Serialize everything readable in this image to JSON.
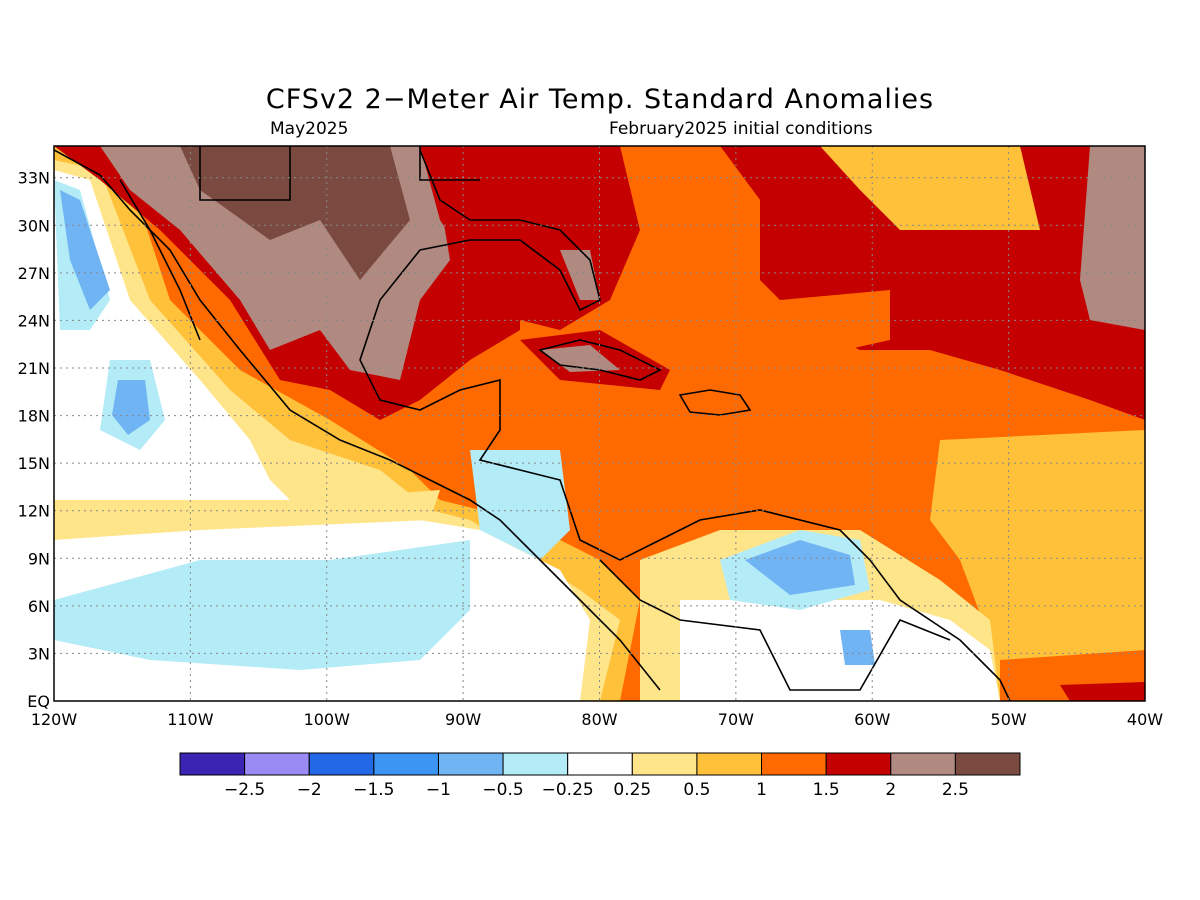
{
  "title": "CFSv2 2−Meter Air Temp. Standard Anomalies",
  "valid_month": "May2025",
  "initial_conditions": "February2025 initial conditions",
  "map": {
    "lon_labels": [
      "120W",
      "110W",
      "100W",
      "90W",
      "80W",
      "70W",
      "60W",
      "50W",
      "40W"
    ],
    "lat_labels": [
      "33N",
      "30N",
      "27N",
      "24N",
      "21N",
      "18N",
      "15N",
      "12N",
      "9N",
      "6N",
      "3N",
      "EQ"
    ],
    "lon_range": [
      -120,
      -40
    ],
    "lat_range": [
      0,
      35
    ],
    "gridlines": true
  },
  "legend": {
    "colors": [
      "#3b24b3",
      "#9a8af4",
      "#2368e6",
      "#3c95f2",
      "#70b4f4",
      "#b3ebf7",
      "#ffffff",
      "#ffe58a",
      "#ffc03a",
      "#ff6a00",
      "#c40000",
      "#b08a80",
      "#7a4a40"
    ],
    "labels": [
      "−2.5",
      "−2",
      "−1.5",
      "−1",
      "−0.5",
      "−0.25",
      "0.25",
      "0.5",
      "1",
      "1.5",
      "2",
      "2.5"
    ]
  }
}
